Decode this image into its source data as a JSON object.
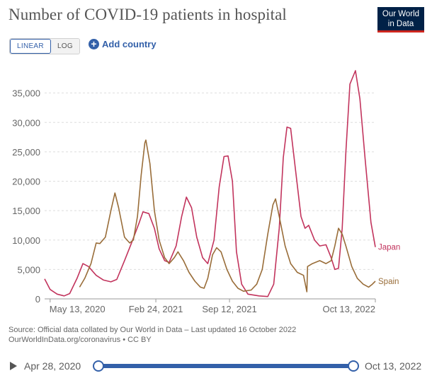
{
  "header": {
    "title": "Number of COVID-19 patients in hospital",
    "logo_line1": "Our World",
    "logo_line2": "in Data"
  },
  "controls": {
    "linear_label": "LINEAR",
    "log_label": "LOG",
    "add_country_label": "Add country",
    "add_country_icon": "plus-circle-icon"
  },
  "footer": {
    "source_line1": "Source: Official data collated by Our World in Data – Last updated 16 October 2022",
    "source_line2": "OurWorldInData.org/coronavirus • CC BY"
  },
  "timeline": {
    "start_label": "Apr 28, 2020",
    "end_label": "Oct 13, 2022"
  },
  "chart_data": {
    "type": "line",
    "title": "Number of COVID-19 patients in hospital",
    "xlabel": "",
    "ylabel": "",
    "x_range": [
      "2020-04-28",
      "2022-10-13"
    ],
    "ylim": [
      0,
      40000
    ],
    "y_ticks": [
      0,
      5000,
      10000,
      15000,
      20000,
      25000,
      30000,
      35000
    ],
    "y_tick_labels": [
      "0",
      "5,000",
      "10,000",
      "15,000",
      "20,000",
      "25,000",
      "30,000",
      "35,000"
    ],
    "x_ticks": [
      "2020-05-13",
      "2021-02-24",
      "2021-09-12",
      "2022-10-13"
    ],
    "x_tick_labels": [
      "May 13, 2020",
      "Feb 24, 2021",
      "Sep 12, 2021",
      "Oct 13, 2022"
    ],
    "grid": "horizontal-dashed",
    "legend": "end-of-line labels",
    "series": [
      {
        "name": "Japan",
        "color": "#c2345d",
        "points": [
          [
            "2020-04-28",
            3400
          ],
          [
            "2020-05-13",
            1600
          ],
          [
            "2020-06-01",
            800
          ],
          [
            "2020-06-20",
            500
          ],
          [
            "2020-07-05",
            900
          ],
          [
            "2020-07-25",
            3500
          ],
          [
            "2020-08-10",
            6000
          ],
          [
            "2020-08-25",
            5500
          ],
          [
            "2020-09-15",
            4000
          ],
          [
            "2020-10-05",
            3200
          ],
          [
            "2020-10-25",
            2900
          ],
          [
            "2020-11-10",
            3300
          ],
          [
            "2020-12-01",
            6500
          ],
          [
            "2020-12-20",
            9500
          ],
          [
            "2021-01-10",
            13000
          ],
          [
            "2021-01-20",
            14800
          ],
          [
            "2021-02-05",
            14500
          ],
          [
            "2021-02-20",
            12000
          ],
          [
            "2021-03-05",
            8500
          ],
          [
            "2021-03-20",
            6500
          ],
          [
            "2021-04-01",
            6200
          ],
          [
            "2021-04-20",
            9000
          ],
          [
            "2021-05-05",
            14000
          ],
          [
            "2021-05-18",
            17300
          ],
          [
            "2021-06-01",
            15500
          ],
          [
            "2021-06-15",
            10500
          ],
          [
            "2021-07-01",
            7000
          ],
          [
            "2021-07-15",
            6000
          ],
          [
            "2021-08-01",
            10000
          ],
          [
            "2021-08-15",
            19000
          ],
          [
            "2021-08-28",
            24200
          ],
          [
            "2021-09-08",
            24300
          ],
          [
            "2021-09-20",
            20000
          ],
          [
            "2021-10-01",
            8000
          ],
          [
            "2021-10-15",
            2500
          ],
          [
            "2021-11-01",
            800
          ],
          [
            "2021-12-01",
            500
          ],
          [
            "2021-12-25",
            400
          ],
          [
            "2022-01-10",
            2500
          ],
          [
            "2022-01-25",
            12000
          ],
          [
            "2022-02-05",
            24000
          ],
          [
            "2022-02-15",
            29200
          ],
          [
            "2022-02-25",
            29000
          ],
          [
            "2022-03-10",
            22000
          ],
          [
            "2022-03-25",
            14000
          ],
          [
            "2022-04-05",
            12000
          ],
          [
            "2022-04-15",
            12500
          ],
          [
            "2022-05-01",
            10000
          ],
          [
            "2022-05-15",
            9000
          ],
          [
            "2022-06-01",
            9200
          ],
          [
            "2022-06-15",
            7000
          ],
          [
            "2022-06-25",
            5000
          ],
          [
            "2022-07-05",
            5200
          ],
          [
            "2022-07-15",
            12000
          ],
          [
            "2022-07-25",
            25000
          ],
          [
            "2022-08-05",
            36500
          ],
          [
            "2022-08-20",
            38800
          ],
          [
            "2022-09-01",
            34000
          ],
          [
            "2022-09-15",
            24000
          ],
          [
            "2022-10-01",
            13000
          ],
          [
            "2022-10-13",
            8800
          ]
        ]
      },
      {
        "name": "Spain",
        "color": "#996d39",
        "points": [
          [
            "2020-08-01",
            2000
          ],
          [
            "2020-08-15",
            3500
          ],
          [
            "2020-09-01",
            6000
          ],
          [
            "2020-09-15",
            9500
          ],
          [
            "2020-09-25",
            9400
          ],
          [
            "2020-10-10",
            10500
          ],
          [
            "2020-10-25",
            15000
          ],
          [
            "2020-11-05",
            18000
          ],
          [
            "2020-11-15",
            15500
          ],
          [
            "2020-12-01",
            10500
          ],
          [
            "2020-12-15",
            9500
          ],
          [
            "2020-12-25",
            10000
          ],
          [
            "2021-01-05",
            14000
          ],
          [
            "2021-01-15",
            21000
          ],
          [
            "2021-01-25",
            26500
          ],
          [
            "2021-01-28",
            27000
          ],
          [
            "2021-02-08",
            23000
          ],
          [
            "2021-02-20",
            15000
          ],
          [
            "2021-03-05",
            10000
          ],
          [
            "2021-03-20",
            7000
          ],
          [
            "2021-04-01",
            6000
          ],
          [
            "2021-04-15",
            7000
          ],
          [
            "2021-04-25",
            8000
          ],
          [
            "2021-05-10",
            6500
          ],
          [
            "2021-05-25",
            4500
          ],
          [
            "2021-06-10",
            3000
          ],
          [
            "2021-06-25",
            2000
          ],
          [
            "2021-07-05",
            1800
          ],
          [
            "2021-07-15",
            3500
          ],
          [
            "2021-07-28",
            7500
          ],
          [
            "2021-08-08",
            8700
          ],
          [
            "2021-08-20",
            8000
          ],
          [
            "2021-09-05",
            5000
          ],
          [
            "2021-09-20",
            3000
          ],
          [
            "2021-10-05",
            1800
          ],
          [
            "2021-10-20",
            1300
          ],
          [
            "2021-11-10",
            1500
          ],
          [
            "2021-11-25",
            2500
          ],
          [
            "2021-12-10",
            5000
          ],
          [
            "2021-12-25",
            11000
          ],
          [
            "2022-01-08",
            16000
          ],
          [
            "2022-01-15",
            17000
          ],
          [
            "2022-01-25",
            14000
          ],
          [
            "2022-02-10",
            9000
          ],
          [
            "2022-02-25",
            6000
          ],
          [
            "2022-03-15",
            4500
          ],
          [
            "2022-04-01",
            4000
          ],
          [
            "2022-04-10",
            1200
          ],
          [
            "2022-04-12",
            5500
          ],
          [
            "2022-04-25",
            6000
          ],
          [
            "2022-05-15",
            6500
          ],
          [
            "2022-06-01",
            6000
          ],
          [
            "2022-06-15",
            6500
          ],
          [
            "2022-06-25",
            9000
          ],
          [
            "2022-07-05",
            12000
          ],
          [
            "2022-07-15",
            11000
          ],
          [
            "2022-07-25",
            9000
          ],
          [
            "2022-08-10",
            5500
          ],
          [
            "2022-08-25",
            3500
          ],
          [
            "2022-09-10",
            2500
          ],
          [
            "2022-09-25",
            2000
          ],
          [
            "2022-10-05",
            2500
          ],
          [
            "2022-10-13",
            3000
          ]
        ]
      }
    ]
  }
}
